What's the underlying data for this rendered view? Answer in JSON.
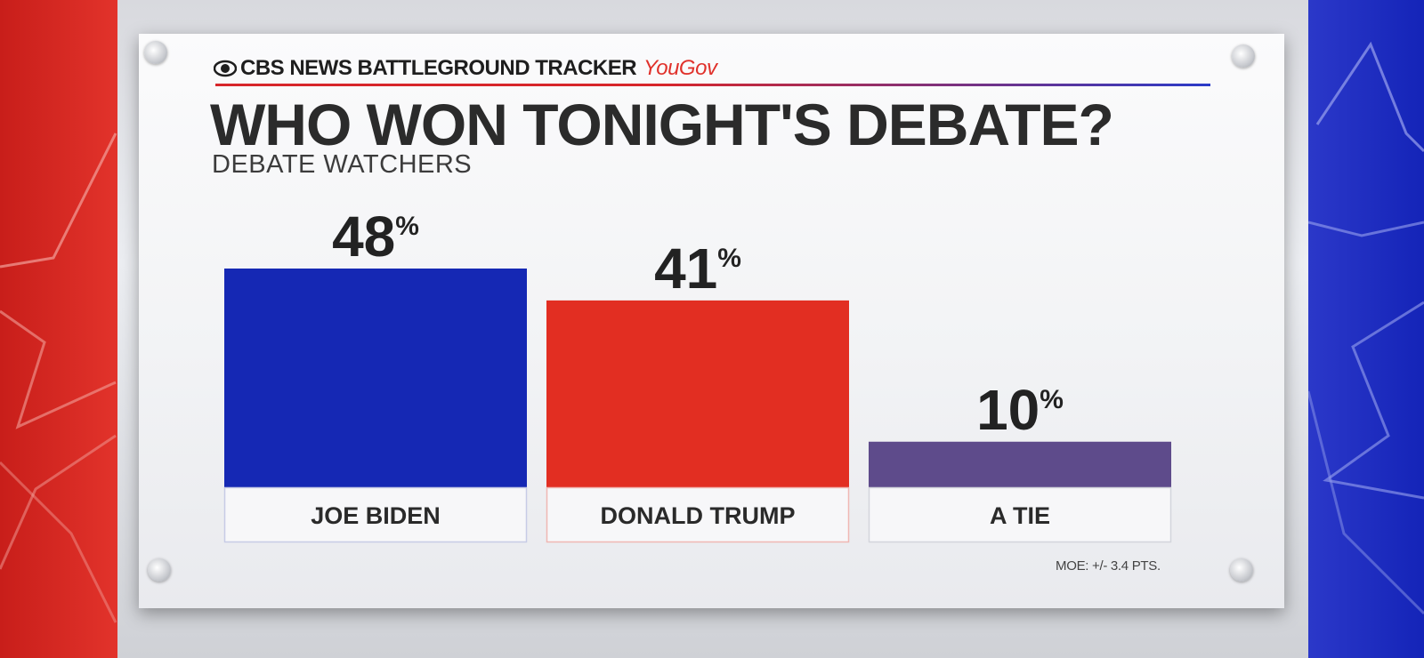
{
  "header": {
    "network": "CBS NEWS BATTLEGROUND TRACKER",
    "partner": "YouGov",
    "logo_icon": "cbs-eye-icon"
  },
  "footer": {
    "moe": "MOE: +/- 3.4 PTS."
  },
  "colors": {
    "biden_blue": "#1528b4",
    "trump_red": "#e22e22",
    "tie_purple": "#5e4b8b",
    "side_red": "#d72a22",
    "side_blue": "#2233c3"
  },
  "chart_data": {
    "type": "bar",
    "title": "WHO WON TONIGHT'S DEBATE?",
    "subtitle": "DEBATE WATCHERS",
    "categories": [
      "JOE BIDEN",
      "DONALD TRUMP",
      "A TIE"
    ],
    "values": [
      48,
      41,
      10
    ],
    "value_labels": [
      "48",
      "41",
      "10"
    ],
    "value_suffix": "%",
    "bar_colors": [
      "#1528b4",
      "#e22e22",
      "#5e4b8b"
    ],
    "label_box_border_colors": [
      "#c7cbe6",
      "#f0b7b3",
      "#d3d5dc"
    ],
    "xlabel": "",
    "ylabel": "",
    "ylim": [
      0,
      48
    ],
    "grid": false,
    "legend": "none"
  }
}
